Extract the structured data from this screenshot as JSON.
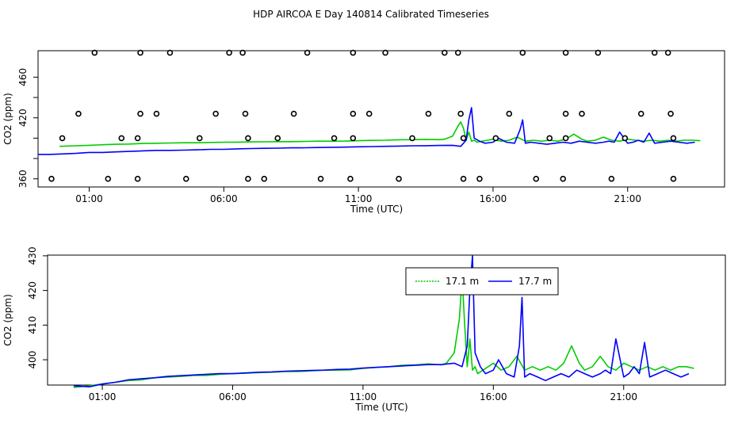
{
  "page": {
    "title": "HDP AIRCOA E  Day 140814  Calibrated Timeseries"
  },
  "chart_data": [
    {
      "type": "scatter+line",
      "xlabel": "Time (UTC)",
      "ylabel": "CO2 (ppm)",
      "xlim": [
        -0.9,
        24.6
      ],
      "ylim": [
        352,
        486
      ],
      "x_ticks": [
        1,
        6,
        11,
        16,
        21
      ],
      "x_tick_labels": [
        "01:00",
        "06:00",
        "11:00",
        "16:00",
        "21:00"
      ],
      "y_ticks": [
        360,
        380,
        400,
        420,
        440,
        460
      ],
      "y_tick_labels": [
        "360",
        "",
        "",
        "420",
        "",
        "460"
      ],
      "series": [
        {
          "color": "#00cc00",
          "x": [
            -0.1,
            0.5,
            1,
            1.5,
            2,
            2.5,
            3,
            3.5,
            4,
            4.5,
            5,
            5.5,
            6,
            6.5,
            7,
            7.5,
            8,
            8.5,
            9,
            9.5,
            10,
            10.5,
            11,
            11.5,
            12,
            12.5,
            13,
            13.5,
            14,
            14.2,
            14.5,
            14.7,
            14.8,
            14.9,
            15,
            15.1,
            15.2,
            15.3,
            15.4,
            15.6,
            15.8,
            16,
            16.3,
            16.6,
            16.9,
            17.2,
            17.5,
            17.8,
            18.1,
            18.4,
            18.7,
            19,
            19.3,
            19.5,
            19.8,
            20.1,
            20.4,
            20.7,
            21,
            21.3,
            21.6,
            21.9,
            22.2,
            22.5,
            22.8,
            23.1,
            23.4,
            23.7
          ],
          "y": [
            392,
            392.5,
            393,
            393.5,
            394,
            394.2,
            394.8,
            395,
            395.2,
            395.5,
            395.5,
            395.8,
            396,
            396.1,
            396.3,
            396.4,
            396.6,
            396.6,
            396.8,
            397,
            397,
            397.1,
            397.5,
            397.8,
            398,
            398.4,
            398.5,
            398.8,
            398.5,
            399,
            402,
            412,
            416,
            410,
            398,
            406,
            397,
            398,
            396,
            397,
            398,
            399,
            397,
            398,
            401,
            397,
            398,
            397,
            398,
            397,
            399,
            404,
            399,
            397,
            398,
            401,
            398,
            397,
            399,
            398,
            397,
            398,
            397,
            398,
            397,
            398,
            398,
            397.5
          ]
        },
        {
          "color": "#0000ff",
          "x": [
            -0.9,
            -0.5,
            0,
            0.5,
            1,
            1.5,
            2,
            2.5,
            3,
            3.5,
            4,
            4.5,
            5,
            5.5,
            6,
            6.5,
            7,
            7.5,
            8,
            8.5,
            9,
            9.5,
            10,
            10.5,
            11,
            11.5,
            12,
            12.5,
            13,
            13.5,
            14,
            14.5,
            14.8,
            15,
            15.1,
            15.2,
            15.3,
            15.5,
            15.7,
            16,
            16.2,
            16.5,
            16.8,
            17,
            17.1,
            17.2,
            17.4,
            17.7,
            18,
            18.3,
            18.6,
            18.9,
            19.2,
            19.5,
            19.8,
            20.1,
            20.3,
            20.5,
            20.7,
            21,
            21.2,
            21.4,
            21.6,
            21.8,
            22,
            22.3,
            22.6,
            22.9,
            23.2,
            23.5
          ],
          "y": [
            384,
            384,
            384.5,
            385,
            386,
            386,
            386.5,
            387,
            387.5,
            388,
            388,
            388.2,
            388.5,
            389,
            389,
            389.5,
            389.8,
            390,
            390.2,
            390.5,
            390.6,
            390.8,
            391,
            391.2,
            391.5,
            391.7,
            392,
            392.2,
            392.5,
            392.6,
            392.8,
            393,
            392,
            398,
            418,
            430,
            400,
            397,
            395,
            396,
            400,
            396,
            395,
            408,
            418,
            395,
            396,
            395,
            394,
            395,
            396,
            395,
            397,
            396,
            395,
            396,
            397,
            396,
            406,
            395,
            396,
            398,
            396,
            405,
            395,
            396,
            397,
            396,
            395,
            396
          ]
        }
      ],
      "markers": [
        {
          "x": -0.4,
          "y": 360
        },
        {
          "x": 0,
          "y": 400
        },
        {
          "x": 0.6,
          "y": 424
        },
        {
          "x": 1.2,
          "y": 484
        },
        {
          "x": 1.7,
          "y": 360
        },
        {
          "x": 2.2,
          "y": 400
        },
        {
          "x": 2.8,
          "y": 360
        },
        {
          "x": 2.8,
          "y": 400
        },
        {
          "x": 2.9,
          "y": 424
        },
        {
          "x": 2.9,
          "y": 484
        },
        {
          "x": 3.5,
          "y": 424
        },
        {
          "x": 4,
          "y": 484
        },
        {
          "x": 4.6,
          "y": 360
        },
        {
          "x": 5.1,
          "y": 400
        },
        {
          "x": 5.7,
          "y": 424
        },
        {
          "x": 6.2,
          "y": 484
        },
        {
          "x": 6.7,
          "y": 484
        },
        {
          "x": 6.8,
          "y": 424
        },
        {
          "x": 6.9,
          "y": 400
        },
        {
          "x": 6.9,
          "y": 360
        },
        {
          "x": 7.5,
          "y": 360
        },
        {
          "x": 8,
          "y": 400
        },
        {
          "x": 8.6,
          "y": 424
        },
        {
          "x": 9.1,
          "y": 484
        },
        {
          "x": 9.6,
          "y": 360
        },
        {
          "x": 10.1,
          "y": 400
        },
        {
          "x": 10.7,
          "y": 360
        },
        {
          "x": 10.8,
          "y": 400
        },
        {
          "x": 10.8,
          "y": 424
        },
        {
          "x": 10.8,
          "y": 484
        },
        {
          "x": 11.4,
          "y": 424
        },
        {
          "x": 12,
          "y": 484
        },
        {
          "x": 12.5,
          "y": 360
        },
        {
          "x": 13,
          "y": 400
        },
        {
          "x": 13.6,
          "y": 424
        },
        {
          "x": 14.2,
          "y": 484
        },
        {
          "x": 14.7,
          "y": 484
        },
        {
          "x": 14.8,
          "y": 424
        },
        {
          "x": 14.9,
          "y": 400
        },
        {
          "x": 14.9,
          "y": 360
        },
        {
          "x": 15.5,
          "y": 360
        },
        {
          "x": 16.1,
          "y": 400
        },
        {
          "x": 16.6,
          "y": 424
        },
        {
          "x": 17.1,
          "y": 484
        },
        {
          "x": 17.6,
          "y": 360
        },
        {
          "x": 18.1,
          "y": 400
        },
        {
          "x": 18.6,
          "y": 360
        },
        {
          "x": 18.7,
          "y": 400
        },
        {
          "x": 18.7,
          "y": 424
        },
        {
          "x": 18.7,
          "y": 484
        },
        {
          "x": 19.3,
          "y": 424
        },
        {
          "x": 19.9,
          "y": 484
        },
        {
          "x": 20.4,
          "y": 360
        },
        {
          "x": 20.9,
          "y": 400
        },
        {
          "x": 21.5,
          "y": 424
        },
        {
          "x": 22,
          "y": 484
        },
        {
          "x": 22.5,
          "y": 484
        },
        {
          "x": 22.6,
          "y": 424
        },
        {
          "x": 22.7,
          "y": 400
        },
        {
          "x": 22.7,
          "y": 360
        }
      ]
    },
    {
      "type": "line",
      "xlabel": "Time (UTC)",
      "ylabel": "CO2 (ppm)",
      "xlim": [
        -1.1,
        24.9
      ],
      "ylim": [
        392.7,
        430.2
      ],
      "x_ticks": [
        1,
        6,
        11,
        16,
        21
      ],
      "x_tick_labels": [
        "01:00",
        "06:00",
        "11:00",
        "16:00",
        "21:00"
      ],
      "y_ticks": [
        400,
        410,
        420,
        430
      ],
      "y_tick_labels": [
        "400",
        "410",
        "420",
        "430"
      ],
      "legend": {
        "placement": "top-center",
        "entries": [
          "17.1 m",
          "17.7 m"
        ]
      },
      "series": [
        {
          "name": "17.1 m",
          "color": "#00cc00",
          "x": [
            -0.1,
            0.5,
            1,
            1.5,
            2,
            2.5,
            3,
            3.5,
            4,
            4.5,
            5,
            5.5,
            6,
            6.5,
            7,
            7.5,
            8,
            8.5,
            9,
            9.5,
            10,
            10.5,
            11,
            11.5,
            12,
            12.5,
            13,
            13.5,
            14,
            14.2,
            14.5,
            14.7,
            14.8,
            14.9,
            15,
            15.1,
            15.2,
            15.3,
            15.4,
            15.6,
            15.8,
            16,
            16.3,
            16.6,
            16.9,
            17.2,
            17.5,
            17.8,
            18.1,
            18.4,
            18.7,
            19,
            19.3,
            19.5,
            19.8,
            20.1,
            20.4,
            20.7,
            21,
            21.3,
            21.6,
            21.9,
            22.2,
            22.5,
            22.8,
            23.1,
            23.4,
            23.7
          ],
          "y": [
            392,
            392.5,
            393,
            393.5,
            394,
            394.2,
            394.8,
            395,
            395.2,
            395.5,
            395.5,
            395.8,
            396,
            396.1,
            396.3,
            396.4,
            396.6,
            396.6,
            396.8,
            397,
            397,
            397.1,
            397.5,
            397.8,
            398,
            398.4,
            398.5,
            398.8,
            398.5,
            399,
            402,
            412,
            424,
            410,
            398,
            406,
            397,
            398,
            396,
            397,
            398,
            399,
            397,
            398,
            401,
            397,
            398,
            397,
            398,
            397,
            399,
            404,
            399,
            397,
            398,
            401,
            398,
            397,
            399,
            398,
            397,
            398,
            397,
            398,
            397,
            398,
            398,
            397.5
          ]
        },
        {
          "name": "17.7 m",
          "color": "#0000ff",
          "x": [
            -0.1,
            0.5,
            1,
            1.5,
            2,
            2.5,
            3,
            3.5,
            4,
            4.5,
            5,
            5.5,
            6,
            6.5,
            7,
            7.5,
            8,
            8.5,
            9,
            9.5,
            10,
            10.5,
            11,
            11.5,
            12,
            12.5,
            13,
            13.5,
            14,
            14.5,
            14.8,
            15,
            15.1,
            15.2,
            15.3,
            15.5,
            15.7,
            16,
            16.2,
            16.5,
            16.8,
            17,
            17.1,
            17.2,
            17.4,
            17.7,
            18,
            18.3,
            18.6,
            18.9,
            19.2,
            19.5,
            19.8,
            20.1,
            20.3,
            20.5,
            20.7,
            21,
            21.2,
            21.4,
            21.6,
            21.8,
            22,
            22.3,
            22.6,
            22.9,
            23.2,
            23.5
          ],
          "y": [
            392.5,
            392.2,
            393,
            393.5,
            394.2,
            394.5,
            394.8,
            395.2,
            395.4,
            395.6,
            395.8,
            396,
            396,
            396.2,
            396.4,
            396.5,
            396.7,
            396.8,
            396.9,
            397,
            397.2,
            397.3,
            397.6,
            397.8,
            398,
            398.2,
            398.4,
            398.6,
            398.6,
            399,
            398,
            404,
            420,
            430,
            402,
            398,
            396,
            397,
            400,
            396,
            395,
            404,
            418,
            395,
            396,
            395,
            394,
            395,
            396,
            395,
            397,
            396,
            395,
            396,
            397,
            396,
            406,
            395,
            396,
            398,
            396,
            405,
            395,
            396,
            397,
            396,
            395,
            396
          ]
        }
      ]
    }
  ]
}
